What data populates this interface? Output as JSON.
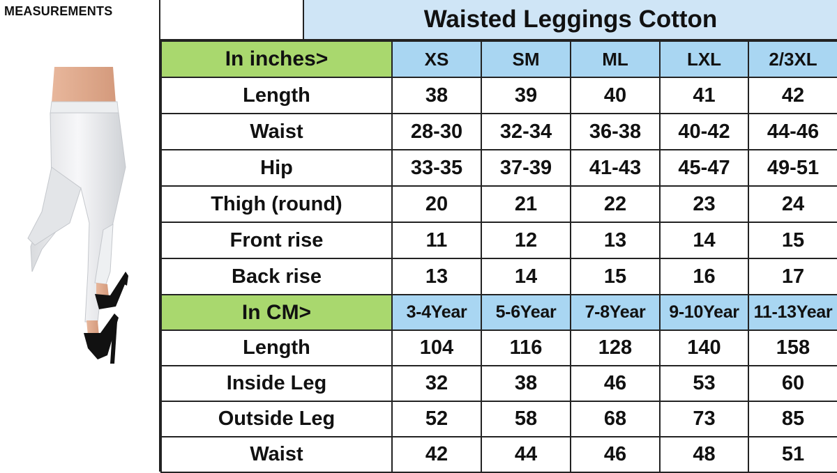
{
  "left_panel": {
    "label": "MEASUREMENTS"
  },
  "title": "Waisted Leggings Cotton",
  "inches_section": {
    "label": "In inches>",
    "sizes": [
      "XS",
      "SM",
      "ML",
      "LXL",
      "2/3XL"
    ],
    "rows": [
      {
        "label": "Length",
        "values": [
          "38",
          "39",
          "40",
          "41",
          "42"
        ]
      },
      {
        "label": "Waist",
        "values": [
          "28-30",
          "32-34",
          "36-38",
          "40-42",
          "44-46"
        ]
      },
      {
        "label": "Hip",
        "values": [
          "33-35",
          "37-39",
          "41-43",
          "45-47",
          "49-51"
        ]
      },
      {
        "label": "Thigh (round)",
        "values": [
          "20",
          "21",
          "22",
          "23",
          "24"
        ]
      },
      {
        "label": "Front rise",
        "values": [
          "11",
          "12",
          "13",
          "14",
          "15"
        ]
      },
      {
        "label": "Back rise",
        "values": [
          "13",
          "14",
          "15",
          "16",
          "17"
        ]
      }
    ]
  },
  "cm_section": {
    "label": "In CM>",
    "sizes": [
      "3-4Year",
      "5-6Year",
      "7-8Year",
      "9-10Year",
      "11-13Year"
    ],
    "rows": [
      {
        "label": "Length",
        "values": [
          "104",
          "116",
          "128",
          "140",
          "158"
        ]
      },
      {
        "label": "Inside Leg",
        "values": [
          "32",
          "38",
          "46",
          "53",
          "60"
        ]
      },
      {
        "label": "Outside Leg",
        "values": [
          "52",
          "58",
          "68",
          "73",
          "85"
        ]
      },
      {
        "label": "Waist",
        "values": [
          "42",
          "44",
          "46",
          "48",
          "51"
        ]
      }
    ]
  },
  "colors": {
    "section_label_bg": "#a9d86e",
    "size_header_bg": "#a9d6f2",
    "title_bg": "#cfe5f6"
  }
}
